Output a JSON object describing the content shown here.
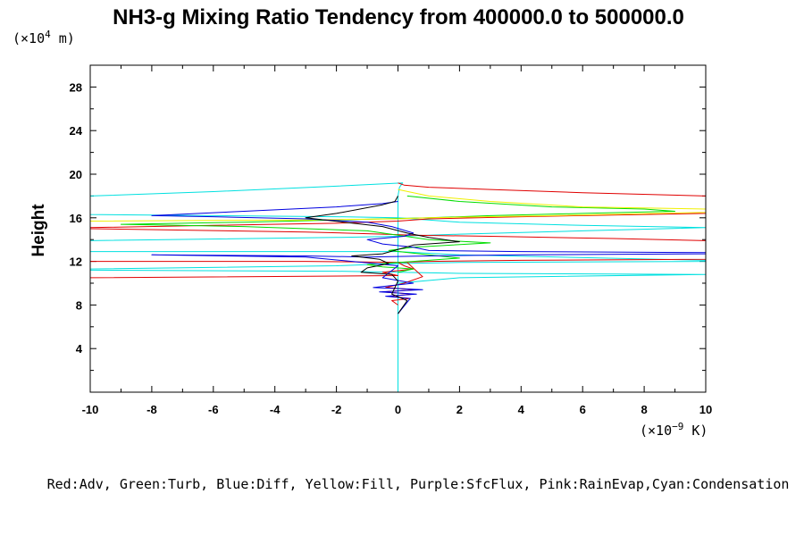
{
  "chart_data": {
    "type": "line",
    "title": "NH3-g Mixing Ratio Tendency from 400000.0 to 500000.0",
    "ylabel": "Height",
    "y_unit_prefix": "(×10",
    "y_unit_exp": "4",
    "y_unit_suffix": " m)",
    "x_unit_prefix": "(×10",
    "x_unit_exp": "−9",
    "x_unit_suffix": " K)",
    "xlim": [
      -10,
      10
    ],
    "ylim": [
      0,
      30
    ],
    "xticks": [
      -10,
      -8,
      -6,
      -4,
      -2,
      0,
      2,
      4,
      6,
      8,
      10
    ],
    "yticks": [
      4,
      8,
      12,
      16,
      20,
      24,
      28
    ],
    "legend_text": "Red:Adv, Green:Turb, Blue:Diff, Yellow:Fill, Purple:SfcFlux, Pink:RainEvap,Cyan:Condensation",
    "colors": {
      "Adv": "#e00000",
      "Turb": "#00dd00",
      "Diff": "#0000e0",
      "Fill": "#f0f000",
      "Cyan": "#00e0e0",
      "Black": "#000000"
    },
    "series": [
      {
        "color_key": "Cyan",
        "x": [
          0,
          0,
          0,
          0.05,
          0.15,
          -2,
          -6,
          -10,
          -10,
          -6,
          -2,
          0,
          2,
          6,
          10,
          10,
          6,
          2,
          0,
          -2,
          -10,
          -10,
          -2,
          0,
          2,
          10,
          10,
          2,
          0,
          -2,
          -10,
          -10,
          -2,
          0,
          2,
          10,
          10,
          2,
          0,
          0
        ],
        "y": [
          0,
          8,
          18,
          18.8,
          19.2,
          18.9,
          18.4,
          18.0,
          16.3,
          16.2,
          16.1,
          16.0,
          15.6,
          15.3,
          15.1,
          15.1,
          14.8,
          14.5,
          14.3,
          14.2,
          13.9,
          12.9,
          12.9,
          12.9,
          12.6,
          12.1,
          12.0,
          11.9,
          11.8,
          11.6,
          11.3,
          11.2,
          11.1,
          11.0,
          10.9,
          10.8,
          10.8,
          10.5,
          10.0,
          0
        ]
      },
      {
        "color_key": "Adv",
        "x": [
          0,
          0.2,
          1,
          3,
          6,
          10,
          10,
          4,
          1,
          0,
          -2,
          -6,
          -10,
          -10,
          -3,
          -0.5,
          0.5,
          3,
          7,
          10,
          10,
          4,
          1,
          0,
          0.2,
          0.5,
          -0.5,
          0,
          -10,
          -10,
          -3,
          0.3,
          0.8,
          0.2,
          -0.4,
          0.6,
          -0.5,
          0.5,
          -0.3,
          0.4,
          -0.2,
          0
        ],
        "y": [
          19.2,
          19.0,
          18.8,
          18.6,
          18.3,
          18.0,
          16.4,
          16.1,
          15.9,
          15.7,
          15.5,
          15.3,
          15.1,
          15.0,
          14.7,
          14.5,
          14.4,
          14.3,
          14.1,
          13.9,
          12.2,
          12.1,
          12.0,
          11.9,
          11.6,
          11.3,
          11.0,
          10.7,
          10.5,
          12.0,
          12.0,
          11.9,
          10.6,
          10.0,
          9.6,
          9.4,
          9.2,
          9.0,
          8.8,
          8.6,
          8.4,
          8.0
        ]
      },
      {
        "color_key": "Turb",
        "x": [
          0.3,
          2,
          5,
          8,
          9,
          6,
          3,
          1,
          -2,
          -5,
          -9,
          -5,
          -1,
          1,
          3,
          0.5,
          -0.3,
          1,
          2,
          0.5,
          -1,
          -0.5,
          0.5,
          0
        ],
        "y": [
          18.0,
          17.5,
          17.0,
          16.8,
          16.6,
          16.4,
          16.2,
          16.0,
          15.8,
          15.6,
          15.4,
          15.2,
          14.8,
          14.0,
          13.7,
          13.3,
          13.0,
          12.6,
          12.3,
          12.0,
          11.7,
          11.5,
          11.3,
          11.0
        ]
      },
      {
        "color_key": "Fill",
        "x": [
          0,
          1,
          3,
          6,
          10,
          10,
          5,
          1,
          0,
          -3,
          -10
        ],
        "y": [
          18.6,
          18.0,
          17.5,
          17.0,
          16.8,
          16.5,
          16.2,
          16.0,
          15.9,
          15.8,
          15.7
        ]
      },
      {
        "color_key": "Diff",
        "x": [
          0,
          -0.5,
          -2,
          -5,
          -8,
          -6,
          -3,
          -1,
          -0.2,
          0.5,
          0.2,
          -1,
          -0.5,
          0.5,
          1,
          4,
          10,
          10,
          4,
          1,
          -1,
          -3,
          -8,
          -3,
          0,
          -0.5,
          0.5,
          -0.8,
          0.8,
          -0.6,
          0.6,
          -0.4,
          0.4,
          0
        ],
        "y": [
          17.5,
          17.3,
          17.0,
          16.6,
          16.2,
          16.1,
          15.9,
          15.6,
          15.2,
          14.6,
          14.3,
          14.0,
          13.6,
          13.3,
          13.0,
          12.9,
          12.8,
          12.7,
          12.6,
          12.5,
          12.4,
          12.5,
          12.6,
          12.4,
          11.6,
          10.5,
          10.0,
          9.6,
          9.4,
          9.2,
          9.0,
          8.8,
          8.6,
          7.2
        ]
      },
      {
        "color_key": "Black",
        "x": [
          0,
          -0.1,
          -0.5,
          -2,
          -3,
          -0.5,
          0.3,
          1,
          2,
          0.5,
          -0.5,
          -1.5,
          -0.6,
          -0.3,
          -1,
          -1.2,
          -0.2,
          0,
          -0.2,
          0.3,
          0
        ],
        "y": [
          18.0,
          17.5,
          17.2,
          16.4,
          16.0,
          15.2,
          14.6,
          14.2,
          13.8,
          13.5,
          12.7,
          12.5,
          12.2,
          11.8,
          11.4,
          11.0,
          10.8,
          10.2,
          9.0,
          8.4,
          7.2
        ]
      }
    ]
  }
}
